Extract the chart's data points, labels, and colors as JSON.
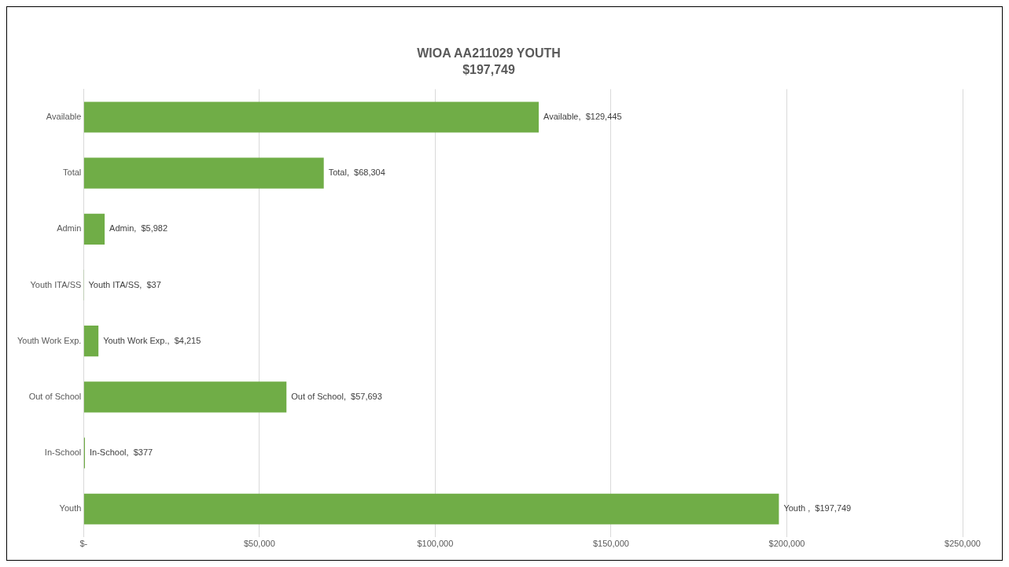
{
  "chart_data": {
    "type": "bar",
    "orientation": "horizontal",
    "title": "WIOA AA211029 YOUTH",
    "subtitle": "$197,749",
    "categories": [
      "Available",
      "Total",
      "Admin",
      "Youth ITA/SS",
      "Youth Work Exp.",
      "Out of School",
      "In-School",
      "Youth"
    ],
    "values": [
      129445,
      68304,
      5982,
      37,
      4215,
      57693,
      377,
      197749
    ],
    "value_labels": [
      "Available,  $129,445",
      "Total,  $68,304",
      "Admin,  $5,982",
      "Youth ITA/SS,  $37",
      "Youth Work Exp.,  $4,215",
      "Out of School,  $57,693",
      "In-School,  $377",
      "Youth ,  $197,749"
    ],
    "color": "#70ad47",
    "xlim": [
      0,
      250000
    ],
    "xticks": [
      {
        "value": 0,
        "label": "$-"
      },
      {
        "value": 50000,
        "label": "$50,000"
      },
      {
        "value": 100000,
        "label": "$100,000"
      },
      {
        "value": 150000,
        "label": "$150,000"
      },
      {
        "value": 200000,
        "label": "$200,000"
      },
      {
        "value": 250000,
        "label": "$250,000"
      }
    ],
    "grid": "x",
    "legend": false
  }
}
